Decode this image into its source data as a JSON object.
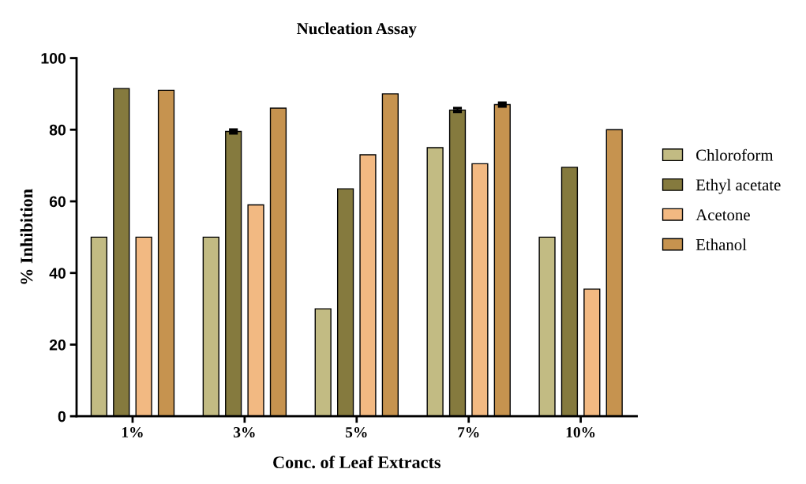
{
  "chart_data": {
    "type": "bar",
    "title": "Nucleation Assay",
    "xlabel": "Conc. of Leaf Extracts",
    "ylabel": "% Inhibition",
    "categories": [
      "1%",
      "3%",
      "5%",
      "7%",
      "10%"
    ],
    "series": [
      {
        "name": "Chloroform",
        "color": "#c2bb83",
        "values": [
          50,
          50,
          30,
          75,
          50
        ]
      },
      {
        "name": "Ethyl acetate",
        "color": "#857a3e",
        "values": [
          91.5,
          79.5,
          63.5,
          85.5,
          69.5
        ],
        "errors": [
          null,
          0.5,
          null,
          0.5,
          null
        ]
      },
      {
        "name": "Acetone",
        "color": "#f2b982",
        "values": [
          50,
          59,
          73,
          70.5,
          35.5
        ]
      },
      {
        "name": "Ethanol",
        "color": "#c6934f",
        "values": [
          91,
          86,
          90,
          87,
          80
        ],
        "errors": [
          null,
          null,
          null,
          0.5,
          null
        ]
      }
    ],
    "ylim": [
      0,
      100
    ],
    "yticks": [
      0,
      20,
      40,
      60,
      80,
      100
    ],
    "legend": "right",
    "grid": false
  }
}
